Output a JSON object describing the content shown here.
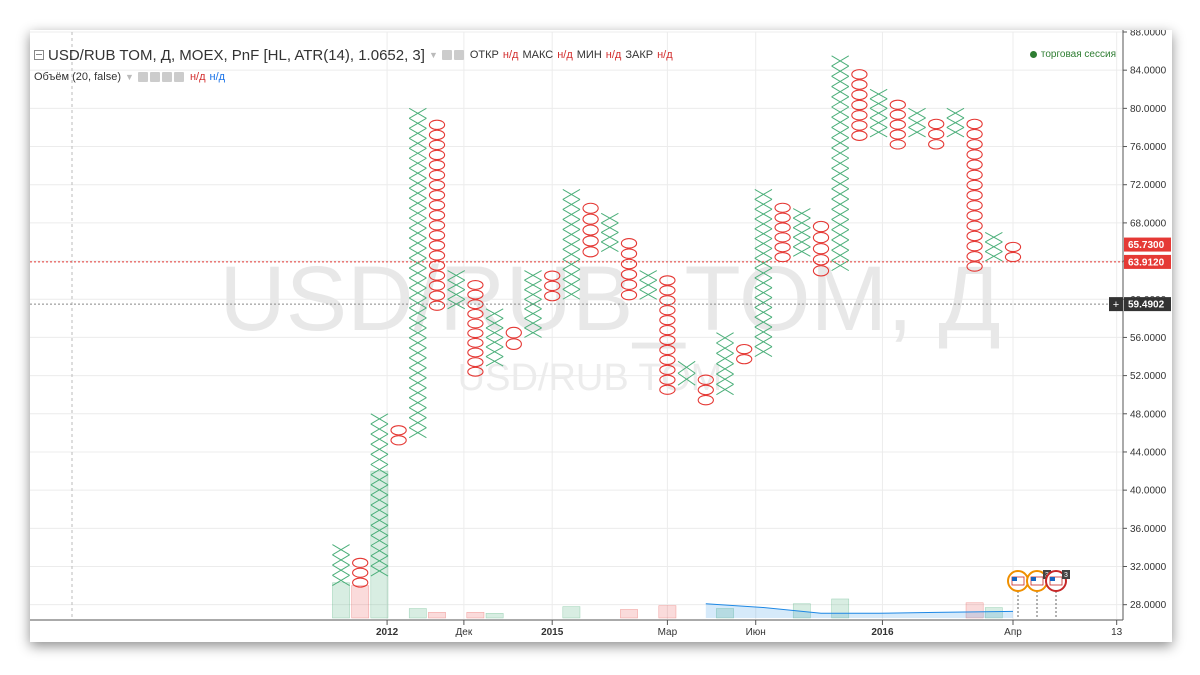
{
  "header": {
    "title": "USD/RUB TOM, Д, MOEX, PnF [HL, ATR(14), 1.0652, 3]",
    "fields": [
      {
        "label": "ОТКР",
        "value": "н/д"
      },
      {
        "label": "МАКС",
        "value": "н/д"
      },
      {
        "label": "МИН",
        "value": "н/д"
      },
      {
        "label": "ЗАКР",
        "value": "н/д"
      }
    ],
    "indicator": "Объём (20, false)",
    "indicator_values": [
      "н/д",
      "н/д"
    ],
    "session": "торговая сессия"
  },
  "watermark": {
    "big": "USD/RUB_TOM, Д",
    "small": "USD/RUB TOM"
  },
  "colors": {
    "x_color": "#4caf7a",
    "o_color": "#e53935",
    "price_badge": "#e53935",
    "cross_badge": "#333333"
  },
  "chart_data": {
    "type": "point-and-figure",
    "box_size": 1.0652,
    "reversal": 3,
    "y_range": [
      26.5,
      88.0
    ],
    "y_ticks": [
      "88.0000",
      "84.0000",
      "80.0000",
      "76.0000",
      "72.0000",
      "68.0000",
      "64.0000",
      "60.0000",
      "56.0000",
      "52.0000",
      "48.0000",
      "44.0000",
      "40.0000",
      "36.0000",
      "32.0000",
      "28.0000"
    ],
    "x_labels": [
      "2012",
      "Дек",
      "2015",
      "Мар",
      "Июн",
      "2016",
      "Апр",
      "13"
    ],
    "price_badges": [
      {
        "label": "65.7300",
        "value": 65.73
      },
      {
        "label": "63.9120",
        "value": 63.912
      }
    ],
    "crosshair": {
      "label": "59.4902",
      "value": 59.4902
    },
    "columns": [
      {
        "type": "X",
        "low": 30.0,
        "high": 34.3
      },
      {
        "type": "O",
        "low": 29.8,
        "high": 32.9
      },
      {
        "type": "X",
        "low": 31.0,
        "high": 48.0
      },
      {
        "type": "O",
        "low": 44.7,
        "high": 46.8
      },
      {
        "type": "X",
        "low": 45.5,
        "high": 80.0
      },
      {
        "type": "O",
        "low": 58.8,
        "high": 78.8
      },
      {
        "type": "X",
        "low": 59.0,
        "high": 63.0
      },
      {
        "type": "O",
        "low": 51.9,
        "high": 62.0
      },
      {
        "type": "X",
        "low": 53.0,
        "high": 59.0
      },
      {
        "type": "O",
        "low": 54.7,
        "high": 57.1
      },
      {
        "type": "X",
        "low": 56.0,
        "high": 63.0
      },
      {
        "type": "O",
        "low": 59.8,
        "high": 63.0
      },
      {
        "type": "X",
        "low": 60.0,
        "high": 71.5
      },
      {
        "type": "O",
        "low": 64.4,
        "high": 70.1
      },
      {
        "type": "X",
        "low": 65.0,
        "high": 69.0
      },
      {
        "type": "O",
        "low": 59.9,
        "high": 66.4
      },
      {
        "type": "X",
        "low": 60.0,
        "high": 63.0
      },
      {
        "type": "O",
        "low": 50.0,
        "high": 62.5
      },
      {
        "type": "X",
        "low": 51.0,
        "high": 53.5
      },
      {
        "type": "O",
        "low": 48.9,
        "high": 52.1
      },
      {
        "type": "X",
        "low": 50.0,
        "high": 56.5
      },
      {
        "type": "O",
        "low": 53.2,
        "high": 55.3
      },
      {
        "type": "X",
        "low": 54.0,
        "high": 71.5
      },
      {
        "type": "O",
        "low": 63.9,
        "high": 70.1
      },
      {
        "type": "X",
        "low": 64.5,
        "high": 69.5
      },
      {
        "type": "O",
        "low": 62.4,
        "high": 68.2
      },
      {
        "type": "X",
        "low": 63.0,
        "high": 85.5
      },
      {
        "type": "O",
        "low": 76.6,
        "high": 84.1
      },
      {
        "type": "X",
        "low": 77.0,
        "high": 82.0
      },
      {
        "type": "O",
        "low": 75.7,
        "high": 80.9
      },
      {
        "type": "X",
        "low": 77.0,
        "high": 80.0
      },
      {
        "type": "O",
        "low": 75.7,
        "high": 78.9
      },
      {
        "type": "X",
        "low": 77.0,
        "high": 80.0
      },
      {
        "type": "O",
        "low": 62.9,
        "high": 78.9
      },
      {
        "type": "X",
        "low": 64.0,
        "high": 67.0
      },
      {
        "type": "O",
        "low": 63.9,
        "high": 66.0
      }
    ],
    "volume": {
      "bars": [
        {
          "col": 0,
          "value": 30.3,
          "color": "x"
        },
        {
          "col": 1,
          "value": 30.0,
          "color": "o"
        },
        {
          "col": 2,
          "value": 42.0,
          "color": "x"
        },
        {
          "col": 4,
          "value": 27.6,
          "color": "x"
        },
        {
          "col": 5,
          "value": 27.2,
          "color": "o"
        },
        {
          "col": 7,
          "value": 27.2,
          "color": "o"
        },
        {
          "col": 8,
          "value": 27.1,
          "color": "x"
        },
        {
          "col": 12,
          "value": 27.8,
          "color": "x"
        },
        {
          "col": 15,
          "value": 27.5,
          "color": "o"
        },
        {
          "col": 17,
          "value": 27.9,
          "color": "o"
        },
        {
          "col": 20,
          "value": 27.6,
          "color": "x"
        },
        {
          "col": 24,
          "value": 28.1,
          "color": "x"
        },
        {
          "col": 26,
          "value": 28.6,
          "color": "x"
        },
        {
          "col": 33,
          "value": 28.2,
          "color": "o"
        },
        {
          "col": 34,
          "value": 27.7,
          "color": "x"
        }
      ],
      "average": [
        [
          19,
          28.1
        ],
        [
          22,
          27.7
        ],
        [
          25,
          27.1
        ],
        [
          28,
          27.1
        ],
        [
          31,
          27.2
        ],
        [
          35,
          27.3
        ]
      ]
    },
    "events": [
      {
        "col": 34,
        "badge": ""
      },
      {
        "col": 35,
        "badge": "3"
      },
      {
        "col": 36,
        "badge": "3"
      }
    ]
  }
}
